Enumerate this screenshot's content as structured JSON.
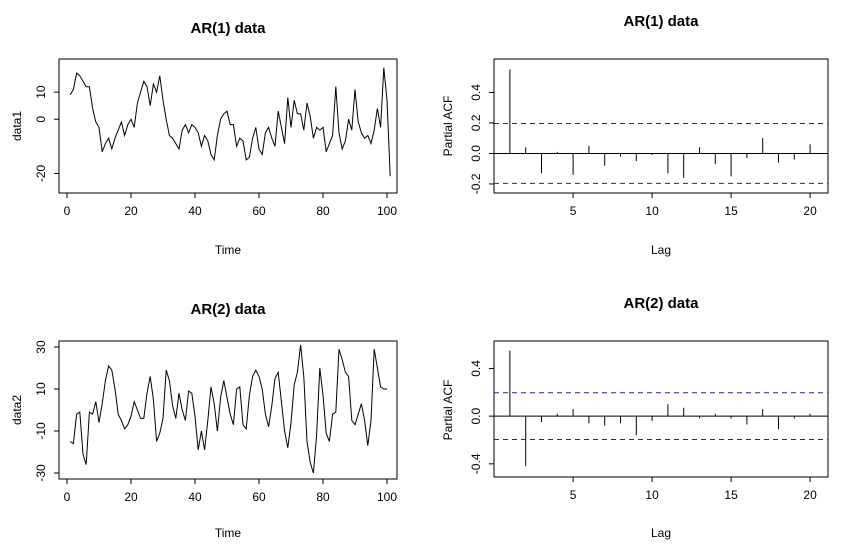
{
  "chart_data": [
    {
      "type": "line",
      "title": "AR(1) data",
      "xlabel": "Time",
      "ylabel": "data1",
      "xlim": [
        0,
        100
      ],
      "ylim": [
        -25,
        20
      ],
      "xticks": [
        0,
        20,
        40,
        60,
        80,
        100
      ],
      "yticks": [
        -20,
        0,
        10
      ],
      "x_start": 1,
      "y": [
        9,
        11,
        17,
        16,
        14,
        12,
        12,
        4,
        -1,
        -3,
        -12,
        -9,
        -7,
        -11,
        -7,
        -4,
        -1,
        -6,
        -2,
        0,
        -3,
        6,
        10,
        14,
        12,
        5,
        13,
        10,
        16,
        7,
        0,
        -6,
        -7,
        -9,
        -11,
        -4,
        -2,
        -5,
        -2,
        -3,
        -5,
        -10,
        -6,
        -8,
        -13,
        -15,
        -6,
        0,
        2,
        3,
        -2,
        -2,
        -10,
        -7,
        -8,
        -15,
        -14,
        -7,
        -3,
        -11,
        -13,
        -5,
        -3,
        -7,
        -10,
        3,
        -3,
        -9,
        8,
        -3,
        7,
        2,
        2,
        -4,
        6,
        1,
        -7,
        -3,
        -4,
        -3,
        -12,
        -9,
        -6,
        12,
        -5,
        -11,
        -8,
        0,
        -4,
        11,
        -1,
        -5,
        -7,
        -6,
        -9,
        -4,
        4,
        -3,
        19,
        7,
        -21
      ]
    },
    {
      "type": "bar",
      "title": "AR(1) data",
      "xlabel": "Lag",
      "ylabel": "Partial ACF",
      "xlim": [
        0.5,
        20.5
      ],
      "ylim": [
        -0.22,
        0.58
      ],
      "xticks": [
        5,
        10,
        15,
        20
      ],
      "yticks": [
        -0.2,
        0.0,
        0.2,
        0.4
      ],
      "lags": [
        1,
        2,
        3,
        4,
        5,
        6,
        7,
        8,
        9,
        10,
        11,
        12,
        13,
        14,
        15,
        16,
        17,
        18,
        19,
        20
      ],
      "values": [
        0.55,
        0.04,
        -0.13,
        0.01,
        -0.14,
        0.05,
        -0.08,
        -0.02,
        -0.05,
        -0.01,
        -0.13,
        -0.16,
        0.04,
        -0.07,
        -0.15,
        -0.03,
        0.1,
        -0.06,
        -0.04,
        0.06
      ],
      "ci": 0.196
    },
    {
      "type": "line",
      "title": "AR(2) data",
      "xlabel": "Time",
      "ylabel": "data2",
      "xlim": [
        0,
        100
      ],
      "ylim": [
        -30,
        30
      ],
      "xticks": [
        0,
        20,
        40,
        60,
        80,
        100
      ],
      "yticks": [
        -30,
        -10,
        10,
        30
      ],
      "x_start": 1,
      "y": [
        -15,
        -16,
        -2,
        -1,
        -21,
        -26,
        -1,
        -2,
        4,
        -6,
        3,
        14,
        21,
        19,
        10,
        -2,
        -5,
        -9,
        -7,
        -3,
        4,
        0,
        -4,
        -4,
        8,
        16,
        5,
        -15,
        -11,
        -4,
        19,
        14,
        2,
        -4,
        8,
        0,
        -5,
        9,
        8,
        -3,
        -19,
        -10,
        -19,
        -5,
        11,
        3,
        -10,
        6,
        14,
        6,
        -2,
        -7,
        10,
        11,
        -7,
        -9,
        7,
        16,
        19,
        16,
        10,
        -2,
        -8,
        2,
        15,
        18,
        4,
        -10,
        -18,
        -6,
        12,
        18,
        31,
        16,
        -15,
        -25,
        -30,
        -12,
        20,
        7,
        -11,
        -15,
        -2,
        -1,
        29,
        24,
        18,
        16,
        -5,
        -7,
        -2,
        3,
        -5,
        -17,
        -5,
        29,
        20,
        11,
        10,
        10
      ]
    },
    {
      "type": "bar",
      "title": "AR(2) data",
      "xlabel": "Lag",
      "ylabel": "Partial ACF",
      "xlim": [
        0.5,
        20.5
      ],
      "ylim": [
        -0.46,
        0.58
      ],
      "xticks": [
        5,
        10,
        15,
        20
      ],
      "yticks": [
        -0.4,
        0.0,
        0.4
      ],
      "lags": [
        1,
        2,
        3,
        4,
        5,
        6,
        7,
        8,
        9,
        10,
        11,
        12,
        13,
        14,
        15,
        16,
        17,
        18,
        19,
        20
      ],
      "values": [
        0.55,
        -0.42,
        -0.05,
        0.02,
        0.06,
        -0.06,
        -0.08,
        -0.06,
        -0.16,
        -0.04,
        0.1,
        0.07,
        -0.02,
        0.02,
        -0.02,
        -0.07,
        0.06,
        -0.11,
        -0.02,
        0.02
      ],
      "ci": 0.196
    }
  ]
}
